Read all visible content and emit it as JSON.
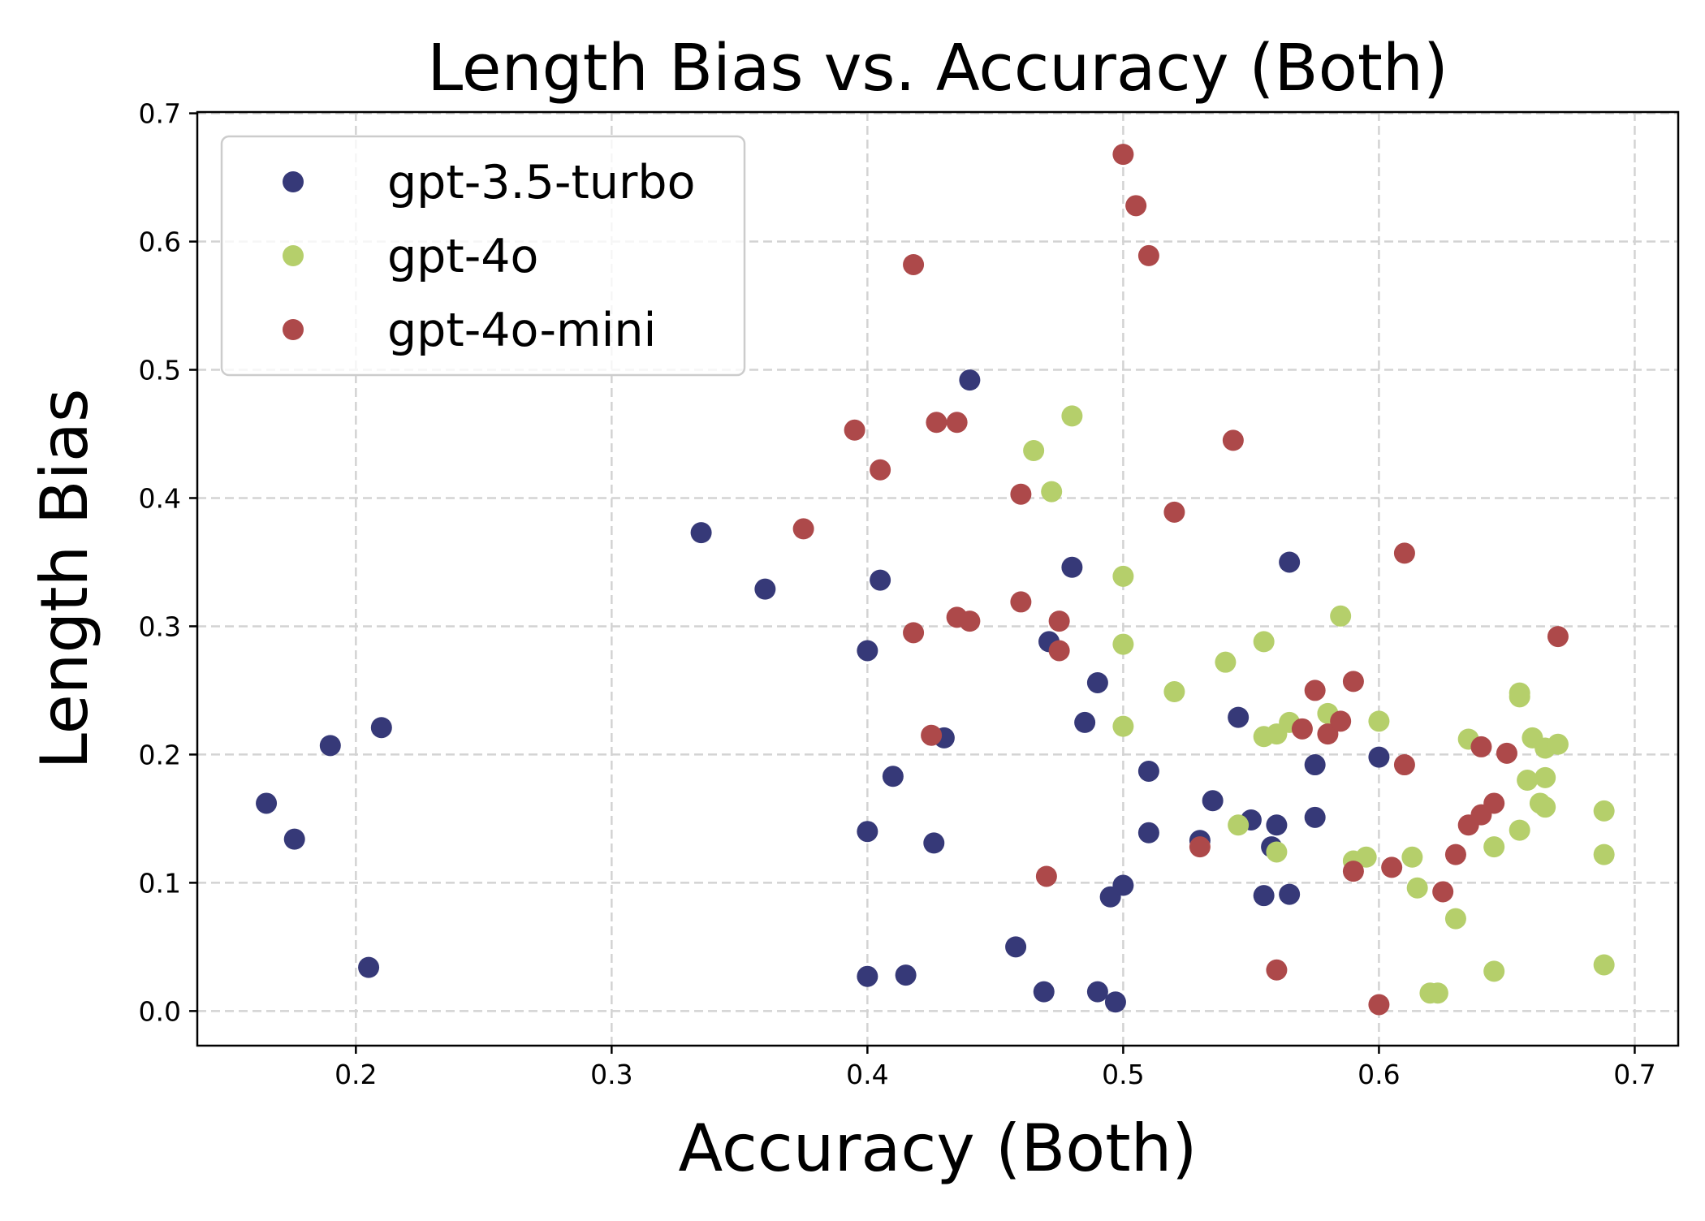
{
  "chart_data": {
    "type": "scatter",
    "title": "Length Bias vs. Accuracy (Both)",
    "xlabel": "Accuracy (Both)",
    "ylabel": "Length Bias",
    "xlim": [
      0.138,
      0.717
    ],
    "ylim": [
      -0.027,
      0.701
    ],
    "xticks": [
      0.2,
      0.3,
      0.4,
      0.5,
      0.6,
      0.7
    ],
    "yticks": [
      0.0,
      0.1,
      0.2,
      0.3,
      0.4,
      0.5,
      0.6,
      0.7
    ],
    "xtick_labels": [
      "0.2",
      "0.3",
      "0.4",
      "0.5",
      "0.6",
      "0.7"
    ],
    "ytick_labels": [
      "0.0",
      "0.1",
      "0.2",
      "0.3",
      "0.4",
      "0.5",
      "0.6",
      "0.7"
    ],
    "grid": true,
    "legend_position": "top-left",
    "series": [
      {
        "name": "gpt-3.5-turbo",
        "color": "#363978",
        "points": [
          [
            0.165,
            0.162
          ],
          [
            0.176,
            0.134
          ],
          [
            0.19,
            0.207
          ],
          [
            0.205,
            0.034
          ],
          [
            0.21,
            0.221
          ],
          [
            0.335,
            0.373
          ],
          [
            0.36,
            0.329
          ],
          [
            0.4,
            0.281
          ],
          [
            0.405,
            0.336
          ],
          [
            0.4,
            0.14
          ],
          [
            0.41,
            0.183
          ],
          [
            0.4,
            0.027
          ],
          [
            0.415,
            0.028
          ],
          [
            0.426,
            0.131
          ],
          [
            0.43,
            0.213
          ],
          [
            0.44,
            0.492
          ],
          [
            0.458,
            0.05
          ],
          [
            0.469,
            0.015
          ],
          [
            0.471,
            0.288
          ],
          [
            0.48,
            0.346
          ],
          [
            0.485,
            0.225
          ],
          [
            0.49,
            0.256
          ],
          [
            0.49,
            0.015
          ],
          [
            0.495,
            0.089
          ],
          [
            0.497,
            0.007
          ],
          [
            0.5,
            0.098
          ],
          [
            0.51,
            0.187
          ],
          [
            0.51,
            0.139
          ],
          [
            0.53,
            0.133
          ],
          [
            0.535,
            0.164
          ],
          [
            0.545,
            0.229
          ],
          [
            0.55,
            0.149
          ],
          [
            0.555,
            0.09
          ],
          [
            0.558,
            0.128
          ],
          [
            0.56,
            0.145
          ],
          [
            0.565,
            0.35
          ],
          [
            0.565,
            0.091
          ],
          [
            0.575,
            0.192
          ],
          [
            0.575,
            0.151
          ],
          [
            0.6,
            0.198
          ]
        ]
      },
      {
        "name": "gpt-4o",
        "color": "#b5cf6b",
        "points": [
          [
            0.465,
            0.437
          ],
          [
            0.472,
            0.405
          ],
          [
            0.48,
            0.464
          ],
          [
            0.5,
            0.339
          ],
          [
            0.5,
            0.286
          ],
          [
            0.5,
            0.222
          ],
          [
            0.52,
            0.249
          ],
          [
            0.54,
            0.272
          ],
          [
            0.545,
            0.145
          ],
          [
            0.555,
            0.288
          ],
          [
            0.555,
            0.214
          ],
          [
            0.56,
            0.216
          ],
          [
            0.56,
            0.124
          ],
          [
            0.565,
            0.225
          ],
          [
            0.58,
            0.232
          ],
          [
            0.585,
            0.308
          ],
          [
            0.59,
            0.117
          ],
          [
            0.595,
            0.12
          ],
          [
            0.6,
            0.226
          ],
          [
            0.613,
            0.12
          ],
          [
            0.615,
            0.096
          ],
          [
            0.62,
            0.014
          ],
          [
            0.623,
            0.014
          ],
          [
            0.63,
            0.072
          ],
          [
            0.635,
            0.212
          ],
          [
            0.645,
            0.128
          ],
          [
            0.645,
            0.031
          ],
          [
            0.655,
            0.248
          ],
          [
            0.655,
            0.245
          ],
          [
            0.655,
            0.141
          ],
          [
            0.658,
            0.18
          ],
          [
            0.66,
            0.213
          ],
          [
            0.663,
            0.162
          ],
          [
            0.665,
            0.205
          ],
          [
            0.665,
            0.182
          ],
          [
            0.665,
            0.159
          ],
          [
            0.67,
            0.208
          ],
          [
            0.688,
            0.156
          ],
          [
            0.688,
            0.122
          ],
          [
            0.688,
            0.036
          ]
        ]
      },
      {
        "name": "gpt-4o-mini",
        "color": "#ad494a",
        "points": [
          [
            0.375,
            0.376
          ],
          [
            0.395,
            0.453
          ],
          [
            0.405,
            0.422
          ],
          [
            0.418,
            0.582
          ],
          [
            0.418,
            0.295
          ],
          [
            0.425,
            0.215
          ],
          [
            0.427,
            0.459
          ],
          [
            0.435,
            0.459
          ],
          [
            0.435,
            0.307
          ],
          [
            0.44,
            0.304
          ],
          [
            0.46,
            0.403
          ],
          [
            0.46,
            0.319
          ],
          [
            0.47,
            0.105
          ],
          [
            0.475,
            0.304
          ],
          [
            0.475,
            0.281
          ],
          [
            0.5,
            0.668
          ],
          [
            0.505,
            0.628
          ],
          [
            0.51,
            0.589
          ],
          [
            0.52,
            0.389
          ],
          [
            0.53,
            0.128
          ],
          [
            0.543,
            0.445
          ],
          [
            0.56,
            0.032
          ],
          [
            0.57,
            0.22
          ],
          [
            0.575,
            0.25
          ],
          [
            0.58,
            0.216
          ],
          [
            0.585,
            0.226
          ],
          [
            0.59,
            0.257
          ],
          [
            0.59,
            0.109
          ],
          [
            0.6,
            0.005
          ],
          [
            0.605,
            0.112
          ],
          [
            0.61,
            0.357
          ],
          [
            0.61,
            0.192
          ],
          [
            0.625,
            0.093
          ],
          [
            0.63,
            0.122
          ],
          [
            0.635,
            0.145
          ],
          [
            0.64,
            0.153
          ],
          [
            0.64,
            0.206
          ],
          [
            0.645,
            0.162
          ],
          [
            0.65,
            0.201
          ],
          [
            0.67,
            0.292
          ]
        ]
      }
    ]
  }
}
